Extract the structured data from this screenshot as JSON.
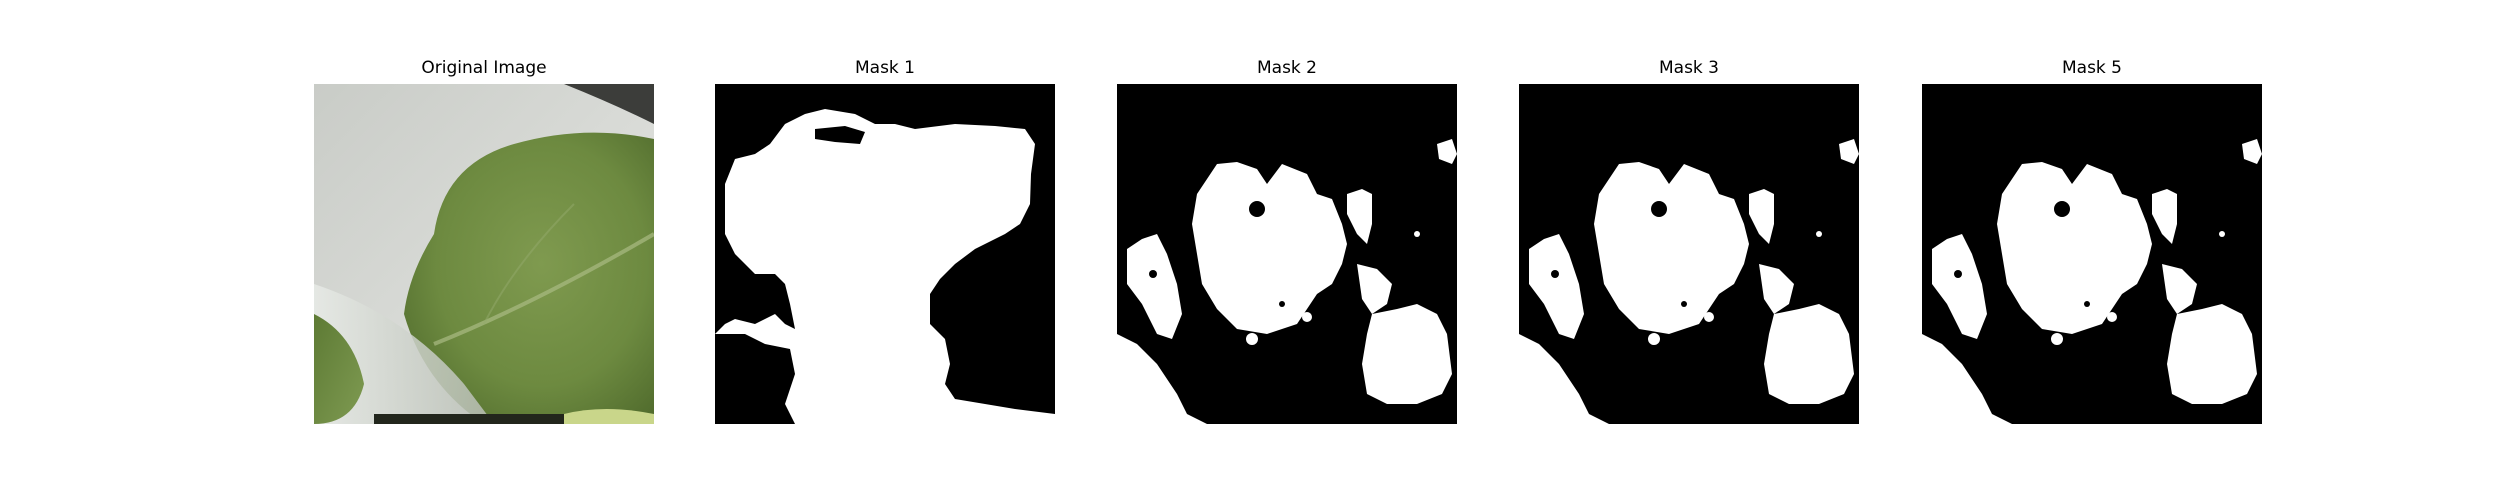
{
  "figure": {
    "panels": [
      {
        "title": "Original Image",
        "kind": "photo"
      },
      {
        "title": "Mask 1",
        "kind": "mask-a"
      },
      {
        "title": "Mask 2",
        "kind": "mask-b"
      },
      {
        "title": "Mask 3",
        "kind": "mask-b"
      },
      {
        "title": "Mask 5",
        "kind": "mask-b"
      }
    ]
  },
  "colors": {
    "mask_foreground": "#ffffff",
    "mask_background": "#000000"
  }
}
